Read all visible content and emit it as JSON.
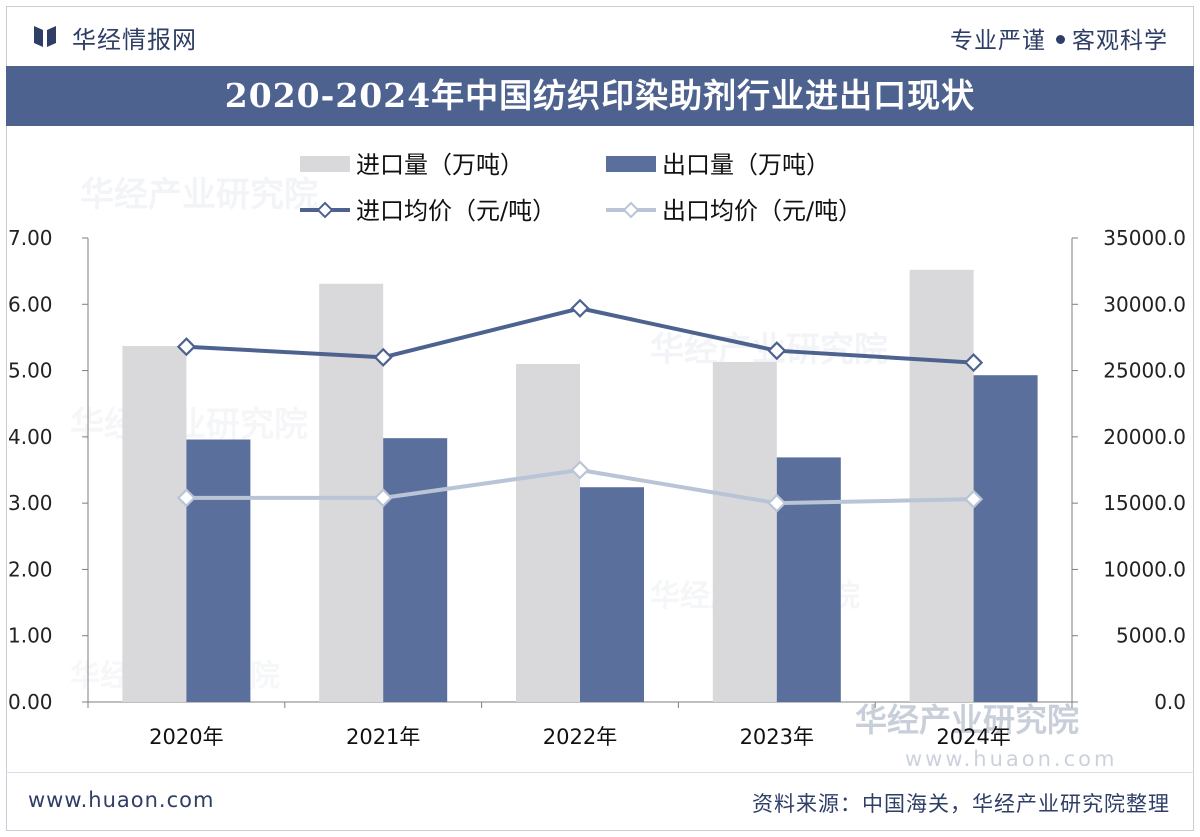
{
  "header": {
    "brand": "华经情报网",
    "slogan_left": "专业严谨",
    "slogan_right": "客观科学"
  },
  "footer": {
    "website": "www.huaon.com",
    "source": "资料来源：中国海关，华经产业研究院整理"
  },
  "watermark": "华经产业研究院",
  "colors": {
    "import_bar": "#d9d9db",
    "export_bar": "#5b6f9c",
    "import_price_line": "#4e6290",
    "export_price_line": "#b9c5d6",
    "title_band": "#4e6290"
  },
  "chart_data": {
    "type": "bar",
    "title": "2020-2024年中国纺织印染助剂行业进出口现状",
    "categories": [
      "2020年",
      "2021年",
      "2022年",
      "2023年",
      "2024年"
    ],
    "series": [
      {
        "name": "进口量（万吨）",
        "kind": "bar",
        "axis": "left",
        "values": [
          5.37,
          6.31,
          5.1,
          5.13,
          6.52
        ]
      },
      {
        "name": "出口量（万吨）",
        "kind": "bar",
        "axis": "left",
        "values": [
          3.96,
          3.98,
          3.24,
          3.69,
          4.93
        ]
      },
      {
        "name": "进口均价（元/吨）",
        "kind": "line",
        "axis": "right",
        "values": [
          26800,
          26000,
          29700,
          26500,
          25600
        ]
      },
      {
        "name": "出口均价（元/吨）",
        "kind": "line",
        "axis": "right",
        "values": [
          15400,
          15400,
          17500,
          15000,
          15300
        ]
      }
    ],
    "y_left": {
      "min": 0,
      "max": 7,
      "ticks": [
        "0.00",
        "1.00",
        "2.00",
        "3.00",
        "4.00",
        "5.00",
        "6.00",
        "7.00"
      ]
    },
    "y_right": {
      "min": 0,
      "max": 35000,
      "ticks": [
        "0.0",
        "5000.0",
        "10000.0",
        "15000.0",
        "20000.0",
        "25000.0",
        "30000.0",
        "35000.0"
      ]
    },
    "legend_position": "top",
    "grid": false
  }
}
